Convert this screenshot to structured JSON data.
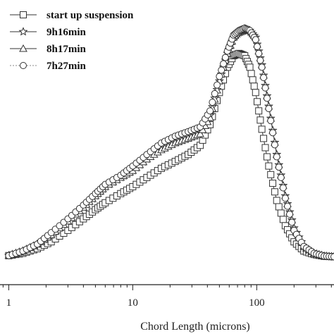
{
  "chart_data": {
    "type": "line",
    "title": "",
    "xlabel": "Chord Length (microns)",
    "ylabel": "",
    "xscale": "log",
    "xlim": [
      0.85,
      420
    ],
    "ylim": [
      0,
      1.0
    ],
    "x_ticks": [
      {
        "value": 1,
        "label": "1"
      },
      {
        "value": 10,
        "label": "10"
      },
      {
        "value": 100,
        "label": "100"
      }
    ],
    "grid": false,
    "legend_position": "top-left",
    "series": [
      {
        "name": "start up suspension",
        "marker": "square",
        "line": "solid",
        "x": [
          1,
          1.3,
          1.7,
          2.2,
          3,
          4,
          5,
          6,
          8,
          10,
          13,
          17,
          22,
          28,
          35,
          42,
          50,
          58,
          65,
          72,
          80,
          88,
          98,
          110,
          125,
          145,
          170,
          200,
          240,
          290,
          350,
          420
        ],
        "y": [
          0.01,
          0.02,
          0.04,
          0.07,
          0.12,
          0.17,
          0.21,
          0.24,
          0.28,
          0.31,
          0.35,
          0.39,
          0.42,
          0.45,
          0.49,
          0.58,
          0.72,
          0.83,
          0.88,
          0.89,
          0.88,
          0.83,
          0.72,
          0.56,
          0.4,
          0.25,
          0.14,
          0.07,
          0.03,
          0.015,
          0.007,
          0.005
        ]
      },
      {
        "name": "9h16min",
        "marker": "star",
        "line": "solid",
        "x": [
          1,
          1.3,
          1.7,
          2.2,
          3,
          4,
          5,
          6,
          8,
          10,
          13,
          17,
          22,
          28,
          35,
          42,
          50,
          58,
          65,
          72,
          80,
          88,
          98,
          110,
          125,
          145,
          170,
          200,
          240,
          290,
          350,
          420
        ],
        "y": [
          0.01,
          0.03,
          0.06,
          0.1,
          0.16,
          0.22,
          0.27,
          0.31,
          0.35,
          0.38,
          0.43,
          0.48,
          0.51,
          0.53,
          0.55,
          0.62,
          0.77,
          0.89,
          0.96,
          0.98,
          0.99,
          0.99,
          0.96,
          0.84,
          0.66,
          0.45,
          0.27,
          0.13,
          0.05,
          0.02,
          0.008,
          0.005
        ]
      },
      {
        "name": "8h17min",
        "marker": "triangle",
        "line": "solid",
        "x": [
          1,
          1.3,
          1.7,
          2.2,
          3,
          4,
          5,
          6,
          8,
          10,
          13,
          17,
          22,
          28,
          35,
          42,
          50,
          58,
          65,
          72,
          80,
          88,
          98,
          110,
          125,
          145,
          170,
          200,
          240,
          290,
          350,
          420
        ],
        "y": [
          0.01,
          0.03,
          0.06,
          0.1,
          0.16,
          0.22,
          0.27,
          0.31,
          0.35,
          0.38,
          0.43,
          0.47,
          0.5,
          0.52,
          0.54,
          0.61,
          0.77,
          0.89,
          0.96,
          0.99,
          1.0,
          0.99,
          0.96,
          0.84,
          0.66,
          0.45,
          0.27,
          0.13,
          0.05,
          0.02,
          0.008,
          0.005
        ]
      },
      {
        "name": "7h27min",
        "marker": "circle",
        "line": "dotted",
        "x": [
          1,
          1.3,
          1.7,
          2.2,
          3,
          4,
          5,
          6,
          8,
          10,
          13,
          17,
          22,
          28,
          35,
          42,
          50,
          58,
          65,
          72,
          80,
          88,
          98,
          110,
          125,
          145,
          170,
          200,
          240,
          290,
          350,
          420
        ],
        "y": [
          0.01,
          0.03,
          0.06,
          0.11,
          0.17,
          0.23,
          0.28,
          0.32,
          0.36,
          0.4,
          0.45,
          0.5,
          0.53,
          0.55,
          0.57,
          0.64,
          0.79,
          0.9,
          0.97,
          0.99,
          1.0,
          0.99,
          0.95,
          0.83,
          0.65,
          0.44,
          0.26,
          0.12,
          0.05,
          0.02,
          0.008,
          0.005
        ]
      }
    ]
  }
}
